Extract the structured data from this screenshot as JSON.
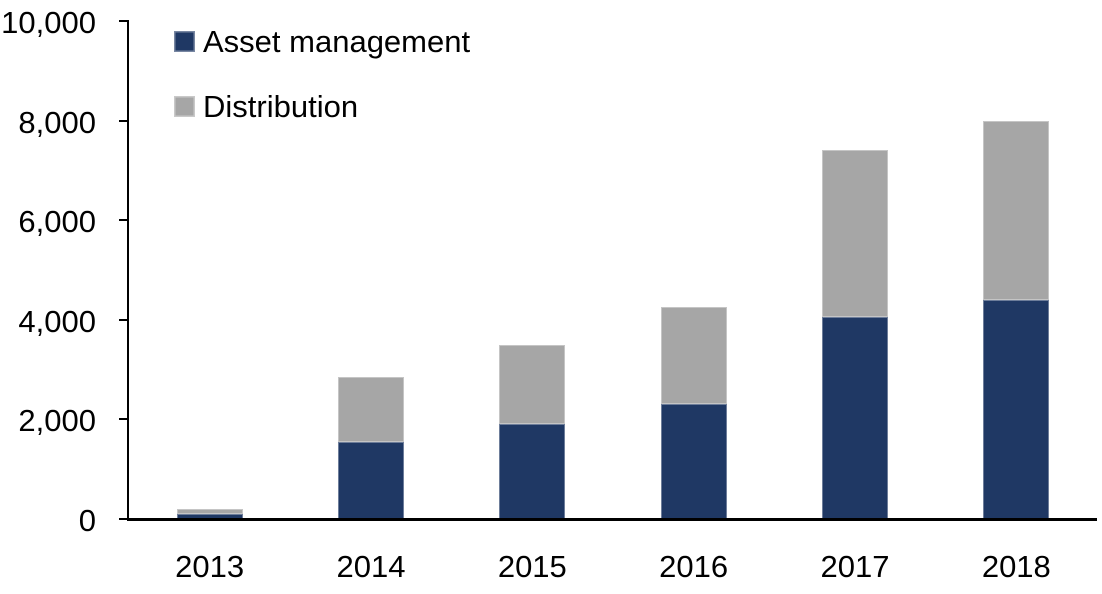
{
  "page": {
    "background_color": "#FFFFFF",
    "text_color": "#000000",
    "axis_color": "#000000"
  },
  "chart_data": {
    "type": "bar",
    "stacked": true,
    "title": "",
    "xlabel": "",
    "ylabel": "",
    "categories": [
      "2013",
      "2014",
      "2015",
      "2016",
      "2017",
      "2018"
    ],
    "series": [
      {
        "name": "Asset management",
        "color": "#1F3864",
        "values": [
          100,
          1550,
          1900,
          2300,
          4050,
          4400
        ]
      },
      {
        "name": "Distribution",
        "color": "#A6A6A6",
        "values": [
          100,
          1300,
          1600,
          1950,
          3350,
          3600
        ]
      }
    ],
    "ylim": [
      0,
      10000
    ],
    "y_ticks": [
      0,
      2000,
      4000,
      6000,
      8000,
      10000
    ],
    "y_tick_labels": [
      "0",
      "2,000",
      "4,000",
      "6,000",
      "8,000",
      "10,000"
    ],
    "legend_position": "top-left",
    "grid": false
  }
}
